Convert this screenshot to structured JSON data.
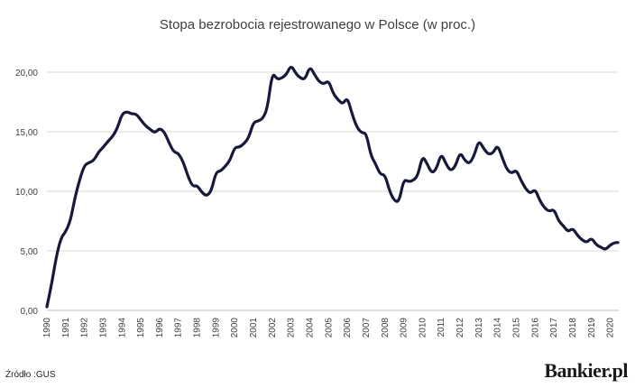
{
  "chart_data": {
    "type": "line",
    "title": "Stopa bezrobocia rejestrowanego w Polsce (w proc.)",
    "xlabel": "",
    "ylabel": "",
    "ylim": [
      0,
      20
    ],
    "yticks": [
      "0,00",
      "5,00",
      "10,00",
      "15,00",
      "20,00"
    ],
    "xticks": [
      "1990",
      "1991",
      "1992",
      "1993",
      "1994",
      "1995",
      "1996",
      "1997",
      "1998",
      "1999",
      "2000",
      "2001",
      "2002",
      "2003",
      "2004",
      "2005",
      "2006",
      "2007",
      "2008",
      "2009",
      "2010",
      "2011",
      "2012",
      "2013",
      "2014",
      "2015",
      "2016",
      "2017",
      "2018",
      "2019",
      "2020"
    ],
    "grid": true,
    "series": [
      {
        "values": [
          [
            1990.0,
            0.3
          ],
          [
            1990.25,
            2.2
          ],
          [
            1990.5,
            4.5
          ],
          [
            1990.75,
            6.1
          ],
          [
            1991.0,
            6.6
          ],
          [
            1991.25,
            7.5
          ],
          [
            1991.5,
            9.5
          ],
          [
            1991.75,
            11.0
          ],
          [
            1992.0,
            12.2
          ],
          [
            1992.25,
            12.4
          ],
          [
            1992.5,
            12.6
          ],
          [
            1992.75,
            13.3
          ],
          [
            1993.0,
            13.7
          ],
          [
            1993.25,
            14.2
          ],
          [
            1993.5,
            14.6
          ],
          [
            1993.75,
            15.3
          ],
          [
            1994.0,
            16.5
          ],
          [
            1994.25,
            16.7
          ],
          [
            1994.5,
            16.5
          ],
          [
            1994.75,
            16.5
          ],
          [
            1995.0,
            16.0
          ],
          [
            1995.25,
            15.5
          ],
          [
            1995.5,
            15.2
          ],
          [
            1995.75,
            14.9
          ],
          [
            1996.0,
            15.3
          ],
          [
            1996.25,
            15.0
          ],
          [
            1996.5,
            14.1
          ],
          [
            1996.75,
            13.3
          ],
          [
            1997.0,
            13.2
          ],
          [
            1997.25,
            12.5
          ],
          [
            1997.5,
            11.3
          ],
          [
            1997.75,
            10.4
          ],
          [
            1998.0,
            10.5
          ],
          [
            1998.25,
            9.9
          ],
          [
            1998.5,
            9.6
          ],
          [
            1998.75,
            10.0
          ],
          [
            1999.0,
            11.6
          ],
          [
            1999.25,
            11.7
          ],
          [
            1999.5,
            12.1
          ],
          [
            1999.75,
            12.6
          ],
          [
            2000.0,
            13.7
          ],
          [
            2000.25,
            13.7
          ],
          [
            2000.5,
            14.0
          ],
          [
            2000.75,
            14.5
          ],
          [
            2001.0,
            15.8
          ],
          [
            2001.25,
            15.9
          ],
          [
            2001.5,
            16.1
          ],
          [
            2001.75,
            17.0
          ],
          [
            2002.0,
            20.0
          ],
          [
            2002.25,
            19.4
          ],
          [
            2002.5,
            19.5
          ],
          [
            2002.75,
            19.8
          ],
          [
            2003.0,
            20.6
          ],
          [
            2003.25,
            19.9
          ],
          [
            2003.5,
            19.5
          ],
          [
            2003.75,
            19.4
          ],
          [
            2004.0,
            20.5
          ],
          [
            2004.25,
            19.8
          ],
          [
            2004.5,
            19.2
          ],
          [
            2004.75,
            19.0
          ],
          [
            2005.0,
            19.3
          ],
          [
            2005.25,
            18.2
          ],
          [
            2005.5,
            17.7
          ],
          [
            2005.75,
            17.3
          ],
          [
            2006.0,
            17.9
          ],
          [
            2006.25,
            16.5
          ],
          [
            2006.5,
            15.4
          ],
          [
            2006.75,
            14.9
          ],
          [
            2007.0,
            14.9
          ],
          [
            2007.25,
            13.0
          ],
          [
            2007.5,
            12.3
          ],
          [
            2007.75,
            11.4
          ],
          [
            2008.0,
            11.4
          ],
          [
            2008.25,
            10.0
          ],
          [
            2008.5,
            9.2
          ],
          [
            2008.75,
            9.1
          ],
          [
            2009.0,
            11.0
          ],
          [
            2009.25,
            10.8
          ],
          [
            2009.5,
            10.9
          ],
          [
            2009.75,
            11.3
          ],
          [
            2010.0,
            13.0
          ],
          [
            2010.25,
            12.3
          ],
          [
            2010.5,
            11.5
          ],
          [
            2010.75,
            11.9
          ],
          [
            2011.0,
            13.2
          ],
          [
            2011.25,
            12.3
          ],
          [
            2011.5,
            11.7
          ],
          [
            2011.75,
            12.1
          ],
          [
            2012.0,
            13.3
          ],
          [
            2012.25,
            12.6
          ],
          [
            2012.5,
            12.3
          ],
          [
            2012.75,
            13.0
          ],
          [
            2013.0,
            14.3
          ],
          [
            2013.25,
            13.6
          ],
          [
            2013.5,
            13.1
          ],
          [
            2013.75,
            13.2
          ],
          [
            2014.0,
            13.9
          ],
          [
            2014.25,
            12.8
          ],
          [
            2014.5,
            11.8
          ],
          [
            2014.75,
            11.5
          ],
          [
            2015.0,
            11.8
          ],
          [
            2015.25,
            10.9
          ],
          [
            2015.5,
            10.2
          ],
          [
            2015.75,
            9.8
          ],
          [
            2016.0,
            10.2
          ],
          [
            2016.25,
            9.2
          ],
          [
            2016.5,
            8.6
          ],
          [
            2016.75,
            8.3
          ],
          [
            2017.0,
            8.5
          ],
          [
            2017.25,
            7.5
          ],
          [
            2017.5,
            7.1
          ],
          [
            2017.75,
            6.6
          ],
          [
            2018.0,
            6.9
          ],
          [
            2018.25,
            6.3
          ],
          [
            2018.5,
            5.9
          ],
          [
            2018.75,
            5.7
          ],
          [
            2019.0,
            6.1
          ],
          [
            2019.25,
            5.5
          ],
          [
            2019.5,
            5.3
          ],
          [
            2019.75,
            5.1
          ],
          [
            2020.0,
            5.5
          ],
          [
            2020.25,
            5.7
          ],
          [
            2020.4,
            5.7
          ]
        ]
      }
    ]
  },
  "footer": {
    "source": "Źródło :GUS",
    "brand": "Bankier.pl"
  },
  "colors": {
    "line": "#17193b",
    "grid": "#d9d9d9",
    "text": "#404040"
  }
}
